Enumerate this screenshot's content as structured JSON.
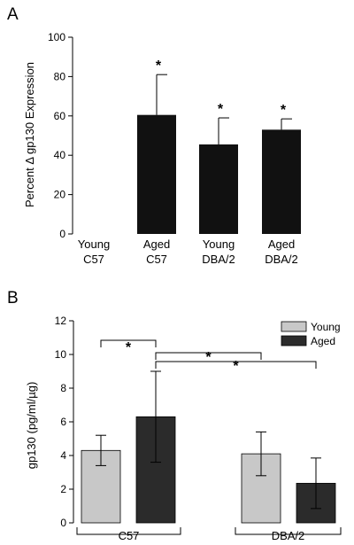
{
  "chart_data": [
    {
      "type": "bar",
      "panel_label": "A",
      "ylabel": "Percent Δ gp130 Expression",
      "ylim": [
        0,
        100
      ],
      "yticks": [
        0,
        20,
        40,
        60,
        80,
        100
      ],
      "categories": [
        {
          "line1": "Young",
          "line2": "C57"
        },
        {
          "line1": "Aged",
          "line2": "C57"
        },
        {
          "line1": "Young",
          "line2": "DBA/2"
        },
        {
          "line1": "Aged",
          "line2": "DBA/2"
        }
      ],
      "values": [
        0,
        60.5,
        45.5,
        53
      ],
      "errors": [
        0,
        20.5,
        13.5,
        5.5
      ],
      "significance": [
        "",
        "*",
        "*",
        "*"
      ],
      "bar_color": "#111111"
    },
    {
      "type": "bar",
      "panel_label": "B",
      "ylabel": "gp130 (pg/ml/µg)",
      "ylim": [
        0,
        12
      ],
      "yticks": [
        0,
        2,
        4,
        6,
        8,
        10,
        12
      ],
      "groups": [
        "C57",
        "DBA/2"
      ],
      "series": [
        {
          "name": "Young",
          "color": "#c8c8c8",
          "values": [
            4.3,
            4.1
          ],
          "errors": [
            0.9,
            1.3
          ]
        },
        {
          "name": "Aged",
          "color": "#2b2b2b",
          "values": [
            6.3,
            2.35
          ],
          "errors": [
            2.7,
            1.5
          ]
        }
      ],
      "legend_position": "top-right",
      "comparisons": [
        {
          "from": "Young C57",
          "to": "Aged C57",
          "label": "*"
        },
        {
          "from": "Aged C57",
          "to": "Young DBA/2",
          "label": "*"
        },
        {
          "from": "Aged C57",
          "to": "Aged DBA/2",
          "label": "*"
        }
      ]
    }
  ]
}
